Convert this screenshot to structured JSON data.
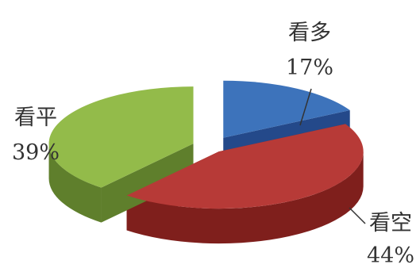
{
  "chart_data": {
    "type": "pie",
    "style": "3d-exploded",
    "title": "",
    "slices": [
      {
        "name": "看多",
        "value": 17,
        "label": "17%",
        "color": "#3d73bb",
        "side_color": "#24498a"
      },
      {
        "name": "看空",
        "value": 44,
        "label": "44%",
        "color": "#b73a37",
        "side_color": "#7f1f1c"
      },
      {
        "name": "看平",
        "value": 39,
        "label": "39%",
        "color": "#93bb4a",
        "side_color": "#5f7f2c"
      }
    ],
    "legend": "none"
  }
}
